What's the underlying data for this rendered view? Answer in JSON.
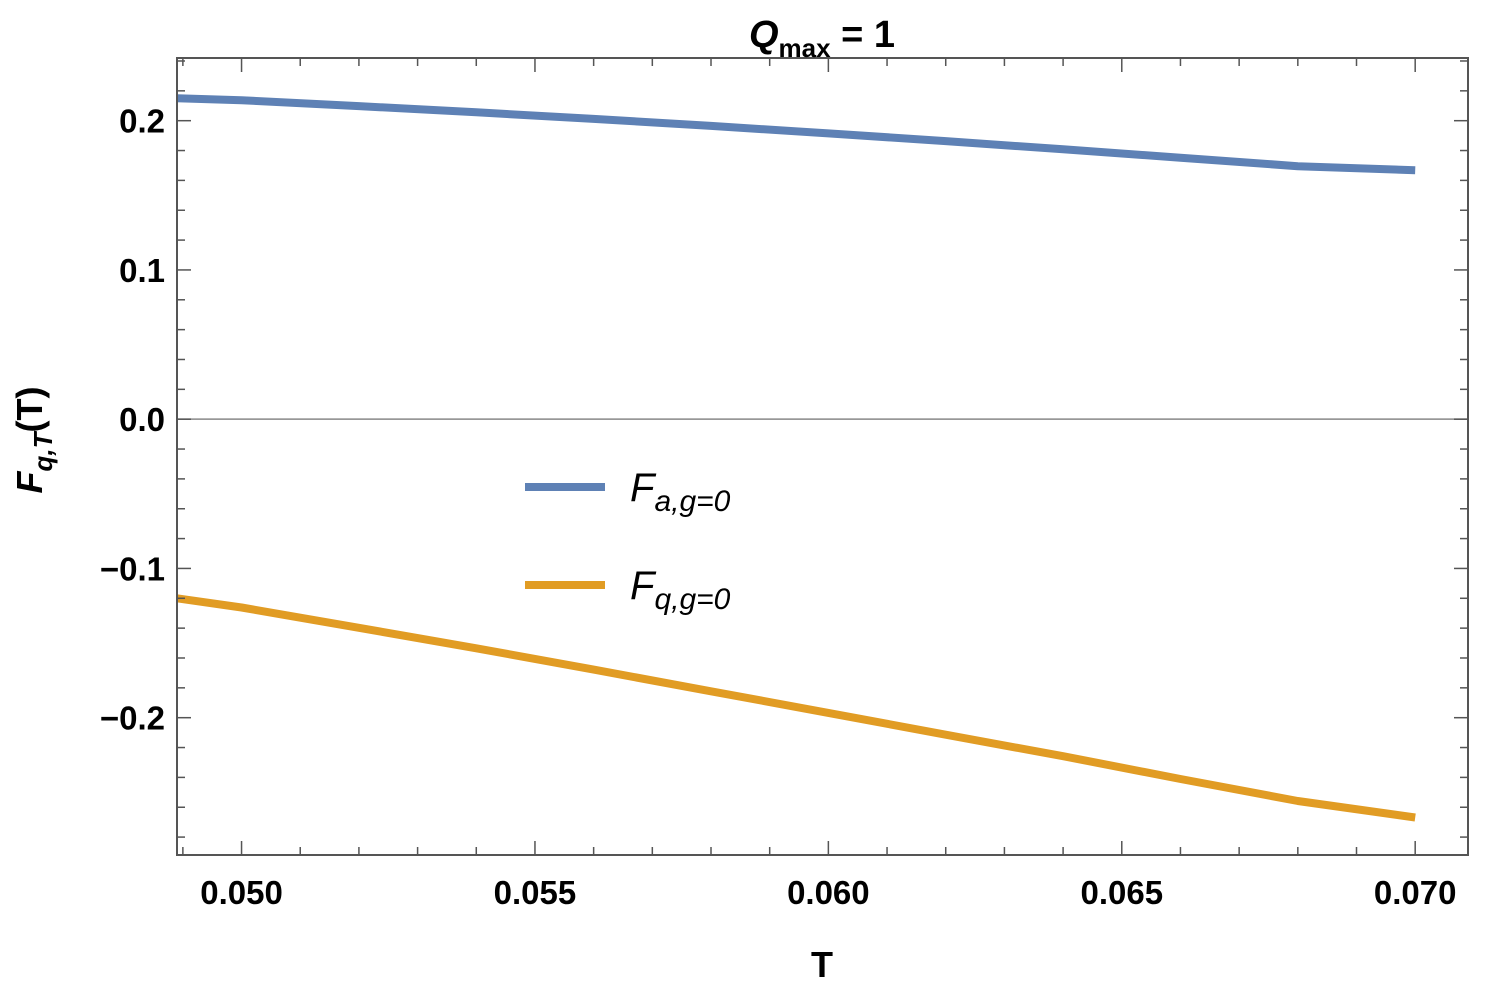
{
  "chart_data": {
    "type": "line",
    "title": {
      "main": "Q",
      "sub": "max",
      "rest": " = 1"
    },
    "xlabel": "T",
    "ylabel": {
      "main": "F",
      "sub": "q,T",
      "rest": "(T)"
    },
    "xlim": [
      0.0489,
      0.0709
    ],
    "ylim": [
      -0.292,
      0.242
    ],
    "x_ticks": [
      {
        "value": 0.05,
        "label": "0.050"
      },
      {
        "value": 0.055,
        "label": "0.055"
      },
      {
        "value": 0.06,
        "label": "0.060"
      },
      {
        "value": 0.065,
        "label": "0.065"
      },
      {
        "value": 0.07,
        "label": "0.070"
      }
    ],
    "y_ticks": [
      {
        "value": 0.2,
        "label": "0.2"
      },
      {
        "value": 0.1,
        "label": "0.1"
      },
      {
        "value": 0.0,
        "label": "0.0"
      },
      {
        "value": -0.1,
        "label": "−0.1"
      },
      {
        "value": -0.2,
        "label": "−0.2"
      }
    ],
    "grid": false,
    "zero_line": true,
    "legend_position": "center-left",
    "series": [
      {
        "name": {
          "main": "F",
          "sub": "a,g=0"
        },
        "color": "#5e81b5",
        "x": [
          0.0489,
          0.05,
          0.052,
          0.054,
          0.056,
          0.058,
          0.06,
          0.062,
          0.064,
          0.066,
          0.068,
          0.07
        ],
        "y": [
          0.215,
          0.2137,
          0.2098,
          0.2056,
          0.2012,
          0.1965,
          0.1915,
          0.1863,
          0.1808,
          0.1752,
          0.1695,
          0.1668
        ]
      },
      {
        "name": {
          "main": "F",
          "sub": "q,g=0"
        },
        "color": "#e19c24",
        "x": [
          0.0489,
          0.05,
          0.052,
          0.054,
          0.056,
          0.058,
          0.06,
          0.062,
          0.064,
          0.066,
          0.068,
          0.07
        ],
        "y": [
          -0.12,
          -0.1262,
          -0.1398,
          -0.1535,
          -0.1678,
          -0.1823,
          -0.1968,
          -0.2114,
          -0.2258,
          -0.2411,
          -0.2558,
          -0.2669
        ]
      }
    ]
  }
}
